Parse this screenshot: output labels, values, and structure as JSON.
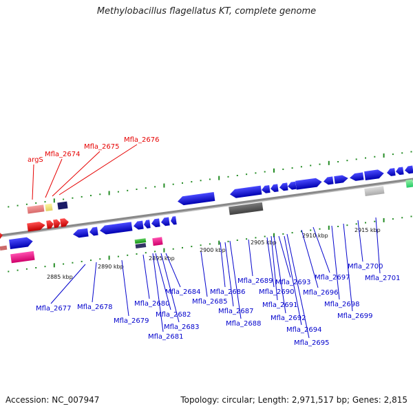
{
  "title": "Methylobacillus flagellatus KT, complete genome",
  "footer": {
    "accession": "Accession: NC_007947",
    "summary": "Topology: circular; Length: 2,971,517 bp; Genes: 2,815"
  },
  "colors": {
    "background": "#ffffff",
    "backbone": "#888888",
    "cds": "#0a0ae6",
    "highlight_label": "#e60000",
    "gene_label": "#0000cc",
    "tick": "#228b22",
    "rna_red": "#ff0000",
    "rna_pink": "#ff1493"
  },
  "scale_labels": [
    "2885 kbp",
    "2890 kbp",
    "2895 kbp",
    "2900 kbp",
    "2905 kbp",
    "2910 kbp",
    "2915 kbp"
  ],
  "highlight_labels": [
    "argS",
    "Mfla_2674",
    "Mfla_2675",
    "Mfla_2676"
  ],
  "gene_labels": [
    "Mfla_2677",
    "Mfla_2678",
    "Mfla_2679",
    "Mfla_2680",
    "Mfla_2681",
    "Mfla_2682",
    "Mfla_2683",
    "Mfla_2684",
    "Mfla_2685",
    "Mfla_2686",
    "Mfla_2687",
    "Mfla_2688",
    "Mfla_2689",
    "Mfla_2690",
    "Mfla_2691",
    "Mfla_2692",
    "Mfla_2693",
    "Mfla_2694",
    "Mfla_2695",
    "Mfla_2696",
    "Mfla_2697",
    "Mfla_2698",
    "Mfla_2699",
    "Mfla_2700",
    "Mfla_2701"
  ]
}
